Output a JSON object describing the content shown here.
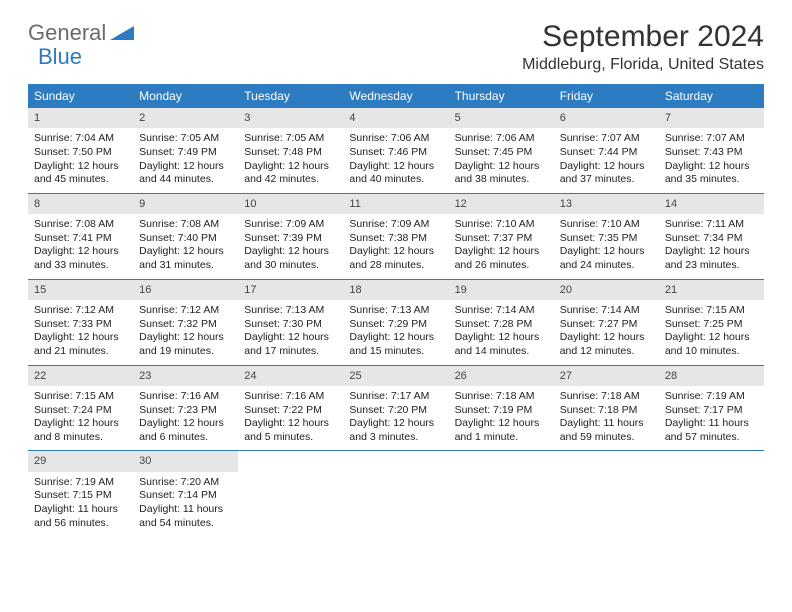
{
  "logo": {
    "part1": "General",
    "part2": "Blue",
    "tri_color": "#2d7bc0"
  },
  "title": "September 2024",
  "location": "Middleburg, Florida, United States",
  "colors": {
    "header_bg": "#2d7bc0",
    "daynum_bg": "#e6e6e6",
    "text": "#222222"
  },
  "day_headers": [
    "Sunday",
    "Monday",
    "Tuesday",
    "Wednesday",
    "Thursday",
    "Friday",
    "Saturday"
  ],
  "weeks": [
    [
      {
        "n": "1",
        "sr": "Sunrise: 7:04 AM",
        "ss": "Sunset: 7:50 PM",
        "d1": "Daylight: 12 hours",
        "d2": "and 45 minutes."
      },
      {
        "n": "2",
        "sr": "Sunrise: 7:05 AM",
        "ss": "Sunset: 7:49 PM",
        "d1": "Daylight: 12 hours",
        "d2": "and 44 minutes."
      },
      {
        "n": "3",
        "sr": "Sunrise: 7:05 AM",
        "ss": "Sunset: 7:48 PM",
        "d1": "Daylight: 12 hours",
        "d2": "and 42 minutes."
      },
      {
        "n": "4",
        "sr": "Sunrise: 7:06 AM",
        "ss": "Sunset: 7:46 PM",
        "d1": "Daylight: 12 hours",
        "d2": "and 40 minutes."
      },
      {
        "n": "5",
        "sr": "Sunrise: 7:06 AM",
        "ss": "Sunset: 7:45 PM",
        "d1": "Daylight: 12 hours",
        "d2": "and 38 minutes."
      },
      {
        "n": "6",
        "sr": "Sunrise: 7:07 AM",
        "ss": "Sunset: 7:44 PM",
        "d1": "Daylight: 12 hours",
        "d2": "and 37 minutes."
      },
      {
        "n": "7",
        "sr": "Sunrise: 7:07 AM",
        "ss": "Sunset: 7:43 PM",
        "d1": "Daylight: 12 hours",
        "d2": "and 35 minutes."
      }
    ],
    [
      {
        "n": "8",
        "sr": "Sunrise: 7:08 AM",
        "ss": "Sunset: 7:41 PM",
        "d1": "Daylight: 12 hours",
        "d2": "and 33 minutes."
      },
      {
        "n": "9",
        "sr": "Sunrise: 7:08 AM",
        "ss": "Sunset: 7:40 PM",
        "d1": "Daylight: 12 hours",
        "d2": "and 31 minutes."
      },
      {
        "n": "10",
        "sr": "Sunrise: 7:09 AM",
        "ss": "Sunset: 7:39 PM",
        "d1": "Daylight: 12 hours",
        "d2": "and 30 minutes."
      },
      {
        "n": "11",
        "sr": "Sunrise: 7:09 AM",
        "ss": "Sunset: 7:38 PM",
        "d1": "Daylight: 12 hours",
        "d2": "and 28 minutes."
      },
      {
        "n": "12",
        "sr": "Sunrise: 7:10 AM",
        "ss": "Sunset: 7:37 PM",
        "d1": "Daylight: 12 hours",
        "d2": "and 26 minutes."
      },
      {
        "n": "13",
        "sr": "Sunrise: 7:10 AM",
        "ss": "Sunset: 7:35 PM",
        "d1": "Daylight: 12 hours",
        "d2": "and 24 minutes."
      },
      {
        "n": "14",
        "sr": "Sunrise: 7:11 AM",
        "ss": "Sunset: 7:34 PM",
        "d1": "Daylight: 12 hours",
        "d2": "and 23 minutes."
      }
    ],
    [
      {
        "n": "15",
        "sr": "Sunrise: 7:12 AM",
        "ss": "Sunset: 7:33 PM",
        "d1": "Daylight: 12 hours",
        "d2": "and 21 minutes."
      },
      {
        "n": "16",
        "sr": "Sunrise: 7:12 AM",
        "ss": "Sunset: 7:32 PM",
        "d1": "Daylight: 12 hours",
        "d2": "and 19 minutes."
      },
      {
        "n": "17",
        "sr": "Sunrise: 7:13 AM",
        "ss": "Sunset: 7:30 PM",
        "d1": "Daylight: 12 hours",
        "d2": "and 17 minutes."
      },
      {
        "n": "18",
        "sr": "Sunrise: 7:13 AM",
        "ss": "Sunset: 7:29 PM",
        "d1": "Daylight: 12 hours",
        "d2": "and 15 minutes."
      },
      {
        "n": "19",
        "sr": "Sunrise: 7:14 AM",
        "ss": "Sunset: 7:28 PM",
        "d1": "Daylight: 12 hours",
        "d2": "and 14 minutes."
      },
      {
        "n": "20",
        "sr": "Sunrise: 7:14 AM",
        "ss": "Sunset: 7:27 PM",
        "d1": "Daylight: 12 hours",
        "d2": "and 12 minutes."
      },
      {
        "n": "21",
        "sr": "Sunrise: 7:15 AM",
        "ss": "Sunset: 7:25 PM",
        "d1": "Daylight: 12 hours",
        "d2": "and 10 minutes."
      }
    ],
    [
      {
        "n": "22",
        "sr": "Sunrise: 7:15 AM",
        "ss": "Sunset: 7:24 PM",
        "d1": "Daylight: 12 hours",
        "d2": "and 8 minutes."
      },
      {
        "n": "23",
        "sr": "Sunrise: 7:16 AM",
        "ss": "Sunset: 7:23 PM",
        "d1": "Daylight: 12 hours",
        "d2": "and 6 minutes."
      },
      {
        "n": "24",
        "sr": "Sunrise: 7:16 AM",
        "ss": "Sunset: 7:22 PM",
        "d1": "Daylight: 12 hours",
        "d2": "and 5 minutes."
      },
      {
        "n": "25",
        "sr": "Sunrise: 7:17 AM",
        "ss": "Sunset: 7:20 PM",
        "d1": "Daylight: 12 hours",
        "d2": "and 3 minutes."
      },
      {
        "n": "26",
        "sr": "Sunrise: 7:18 AM",
        "ss": "Sunset: 7:19 PM",
        "d1": "Daylight: 12 hours",
        "d2": "and 1 minute."
      },
      {
        "n": "27",
        "sr": "Sunrise: 7:18 AM",
        "ss": "Sunset: 7:18 PM",
        "d1": "Daylight: 11 hours",
        "d2": "and 59 minutes."
      },
      {
        "n": "28",
        "sr": "Sunrise: 7:19 AM",
        "ss": "Sunset: 7:17 PM",
        "d1": "Daylight: 11 hours",
        "d2": "and 57 minutes."
      }
    ],
    [
      {
        "n": "29",
        "sr": "Sunrise: 7:19 AM",
        "ss": "Sunset: 7:15 PM",
        "d1": "Daylight: 11 hours",
        "d2": "and 56 minutes."
      },
      {
        "n": "30",
        "sr": "Sunrise: 7:20 AM",
        "ss": "Sunset: 7:14 PM",
        "d1": "Daylight: 11 hours",
        "d2": "and 54 minutes."
      },
      null,
      null,
      null,
      null,
      null
    ]
  ]
}
